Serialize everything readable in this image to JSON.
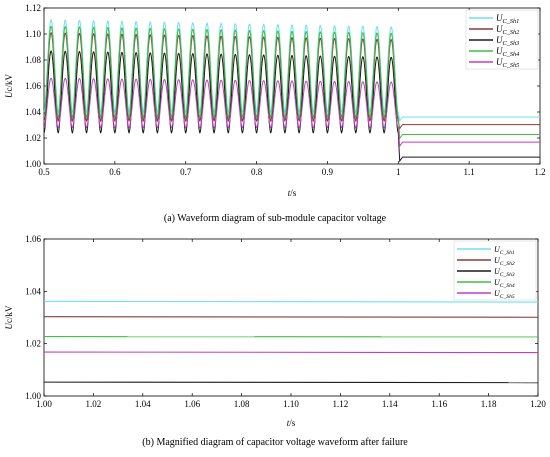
{
  "chart_data": [
    {
      "type": "line",
      "caption": "(a) Waveform diagram of sub-module capacitor voltage",
      "xlabel": "t/s",
      "ylabel": "Uc/kV",
      "xlim": [
        0.5,
        1.2
      ],
      "ylim": [
        1.0,
        1.12
      ],
      "xticks": [
        "0.5",
        "0.6",
        "0.7",
        "0.8",
        "0.9",
        "1",
        "1.1",
        "1.2"
      ],
      "yticks": [
        "1.00",
        "1.02",
        "1.04",
        "1.06",
        "1.08",
        "1.10",
        "1.12"
      ],
      "grid": false,
      "legend_position": "top-right",
      "oscillation": {
        "t_start": 0.5,
        "t_end": 1.0,
        "cycles": 25
      },
      "series": [
        {
          "name": "U_C_Sh1",
          "label_main": "U",
          "label_sub": "C_Sh1",
          "color": "#6fe0f0",
          "peak": 1.111,
          "trough": 1.04,
          "post_fault": 1.0362
        },
        {
          "name": "U_C_Sh2",
          "label_main": "U",
          "label_sub": "C_Sh2",
          "color": "#8b3a3a",
          "peak": 1.101,
          "trough": 1.033,
          "post_fault": 1.0303
        },
        {
          "name": "U_C_Sh3",
          "label_main": "U",
          "label_sub": "C_Sh3",
          "color": "#1a1a1a",
          "peak": 1.087,
          "trough": 1.024,
          "post_fault": 1.0053
        },
        {
          "name": "U_C_Sh4",
          "label_main": "U",
          "label_sub": "C_Sh4",
          "color": "#3fbf3f",
          "peak": 1.106,
          "trough": 1.036,
          "post_fault": 1.0227
        },
        {
          "name": "U_C_Sh5",
          "label_main": "U",
          "label_sub": "C_Sh5",
          "color": "#c23fc2",
          "peak": 1.066,
          "trough": 1.028,
          "post_fault": 1.0168
        }
      ]
    },
    {
      "type": "line",
      "caption": "(b) Magnified diagram of capacitor voltage waveform after failure",
      "xlabel": "t/s",
      "ylabel": "Uc/kV",
      "xlim": [
        1.0,
        1.2
      ],
      "ylim": [
        1.0,
        1.06
      ],
      "xticks": [
        "1.00",
        "1.02",
        "1.04",
        "1.06",
        "1.08",
        "1.10",
        "1.12",
        "1.14",
        "1.16",
        "1.18",
        "1.20"
      ],
      "yticks": [
        "1.00",
        "1.02",
        "1.04",
        "1.06"
      ],
      "grid": false,
      "legend_position": "top-right",
      "series": [
        {
          "name": "U_C_Sh1",
          "label_main": "U",
          "label_sub": "C_Sh1",
          "color": "#6fe0f0",
          "values": [
            1.0362,
            1.0359
          ]
        },
        {
          "name": "U_C_Sh2",
          "label_main": "U",
          "label_sub": "C_Sh2",
          "color": "#8b3a3a",
          "values": [
            1.0303,
            1.0301
          ]
        },
        {
          "name": "U_C_Sh3",
          "label_main": "U",
          "label_sub": "C_Sh3",
          "color": "#1a1a1a",
          "values": [
            1.0053,
            1.0051
          ]
        },
        {
          "name": "U_C_Sh4",
          "label_main": "U",
          "label_sub": "C_Sh4",
          "color": "#3fbf3f",
          "values": [
            1.0227,
            1.0226
          ]
        },
        {
          "name": "U_C_Sh5",
          "label_main": "U",
          "label_sub": "C_Sh5",
          "color": "#c23fc2",
          "values": [
            1.0168,
            1.0166
          ]
        }
      ]
    }
  ]
}
